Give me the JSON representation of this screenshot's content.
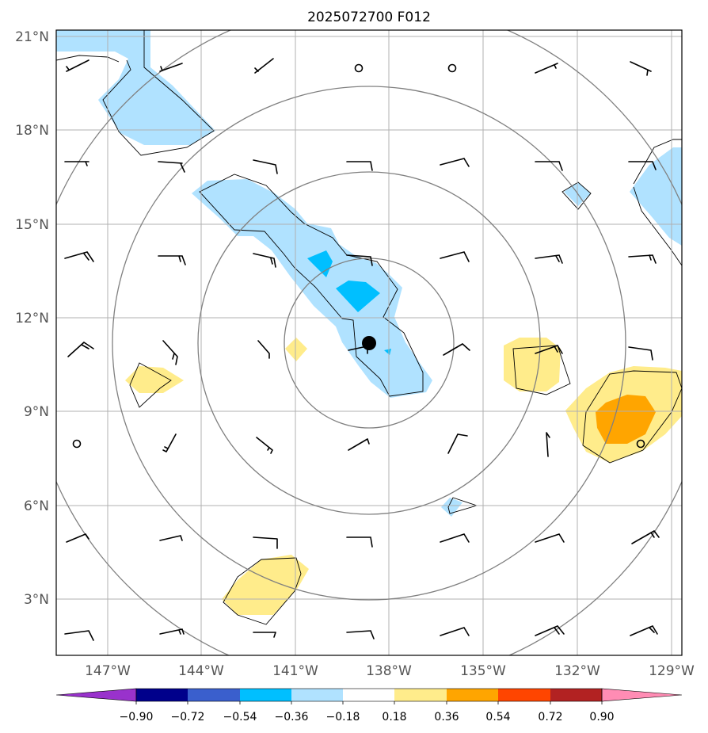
{
  "title": "2025072700 F012",
  "lat_labels": [
    "21°N",
    "18°N",
    "15°N",
    "12°N",
    "9°N",
    "6°N",
    "3°N"
  ],
  "lon_labels": [
    "147°W",
    "144°W",
    "141°W",
    "138°W",
    "135°W",
    "132°W",
    "129°W"
  ],
  "colorbar": {
    "tick_labels": [
      "−0.90",
      "−0.72",
      "−0.54",
      "−0.36",
      "−0.18",
      "0.18",
      "0.36",
      "0.54",
      "0.72",
      "0.90"
    ],
    "colors": [
      "#9932cc",
      "#00008b",
      "#3a5fcd",
      "#00bfff",
      "#b0e2ff",
      "#ffffff",
      "#ffec8b",
      "#ffa500",
      "#ff4500",
      "#b22222",
      "#ff8cb4"
    ]
  },
  "colors": {
    "shade_light_blue": "#b0e2ff",
    "shade_blue": "#00bfff",
    "shade_light_yellow": "#ffec8b",
    "shade_orange": "#ffa500",
    "range_rings": "#808080",
    "grid": "#aaaaaa",
    "storm_center": "#000000"
  },
  "storm_center": {
    "lat": 11.2,
    "lon": -138.7
  },
  "map_extent": {
    "lon": [
      -148.6,
      -128.8
    ],
    "lat": [
      1.8,
      21.2
    ]
  }
}
